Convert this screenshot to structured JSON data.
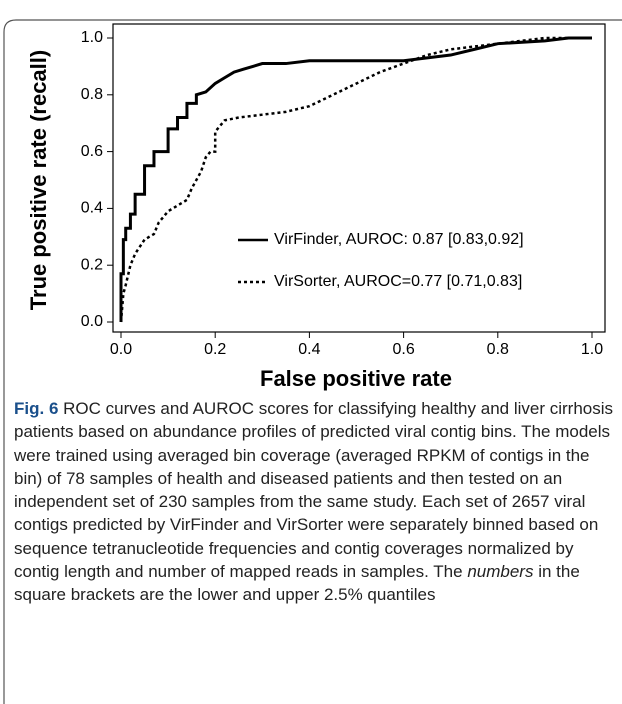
{
  "chart_data": {
    "type": "line",
    "xlabel": "False positive rate",
    "ylabel": "True positive rate (recall)",
    "xlim": [
      0,
      1
    ],
    "xticks": [
      {
        "value": 0,
        "label": "0.0"
      },
      {
        "value": 0.2,
        "label": "0.2"
      },
      {
        "value": 0.4,
        "label": "0.4"
      },
      {
        "value": 0.6,
        "label": "0.6"
      },
      {
        "value": 0.8,
        "label": "0.8"
      },
      {
        "value": 1,
        "label": "1.0"
      }
    ],
    "ylim": [
      0,
      1
    ],
    "yticks": [
      {
        "value": 0,
        "label": "0.0"
      },
      {
        "value": 0.2,
        "label": "0.2"
      },
      {
        "value": 0.4,
        "label": "0.4"
      },
      {
        "value": 0.6,
        "label": "0.6"
      },
      {
        "value": 0.8,
        "label": "0.8"
      },
      {
        "value": 1,
        "label": "1.0"
      }
    ],
    "series": [
      {
        "name": "VirFinder, AUROC: 0.87 [0.83,0.92]",
        "color": "#000000",
        "dash": "solid",
        "x": [
          0,
          0,
          0.005,
          0.005,
          0.01,
          0.01,
          0.02,
          0.02,
          0.03,
          0.03,
          0.05,
          0.05,
          0.07,
          0.07,
          0.1,
          0.1,
          0.12,
          0.12,
          0.14,
          0.14,
          0.16,
          0.16,
          0.18,
          0.2,
          0.22,
          0.24,
          0.26,
          0.28,
          0.3,
          0.35,
          0.4,
          0.5,
          0.6,
          0.65,
          0.7,
          0.75,
          0.8,
          0.9,
          0.95,
          1.0
        ],
        "values": [
          0,
          0.17,
          0.17,
          0.29,
          0.29,
          0.33,
          0.33,
          0.38,
          0.38,
          0.45,
          0.45,
          0.55,
          0.55,
          0.6,
          0.6,
          0.68,
          0.68,
          0.72,
          0.72,
          0.77,
          0.77,
          0.8,
          0.81,
          0.84,
          0.86,
          0.88,
          0.89,
          0.9,
          0.91,
          0.91,
          0.92,
          0.92,
          0.92,
          0.93,
          0.94,
          0.96,
          0.98,
          0.99,
          1.0,
          1.0
        ]
      },
      {
        "name": "VirSorter, AUROC=0.77 [0.71,0.83]",
        "color": "#000000",
        "dash": "dotted",
        "x": [
          0,
          0.005,
          0.01,
          0.02,
          0.03,
          0.05,
          0.07,
          0.08,
          0.1,
          0.12,
          0.14,
          0.15,
          0.17,
          0.18,
          0.19,
          0.2,
          0.2,
          0.22,
          0.25,
          0.3,
          0.35,
          0.4,
          0.45,
          0.5,
          0.55,
          0.6,
          0.65,
          0.7,
          0.75,
          0.8,
          0.85,
          0.9,
          1.0
        ],
        "values": [
          0,
          0.1,
          0.13,
          0.2,
          0.24,
          0.29,
          0.31,
          0.35,
          0.39,
          0.41,
          0.43,
          0.47,
          0.53,
          0.58,
          0.6,
          0.6,
          0.67,
          0.71,
          0.72,
          0.73,
          0.74,
          0.76,
          0.8,
          0.84,
          0.88,
          0.91,
          0.94,
          0.96,
          0.97,
          0.98,
          0.99,
          1.0,
          1.0
        ]
      }
    ],
    "legend": "lower right"
  },
  "caption": {
    "label": "Fig. 6",
    "text_before": "ROC curves and AUROC scores for classifying healthy and liver cirrhosis patients based on abundance profiles of predicted viral contig bins. The models were trained using averaged bin coverage (averaged RPKM of contigs in the bin) of 78 samples of health and diseased patients and then tested on an independent set of 230 samples from the same study. Each set of 2657 viral contigs predicted by VirFinder and VirSorter were separately binned based on sequence tetranucleotide frequencies and contig coverages normalized by contig length and number of mapped reads in samples. The",
    "italic": "numbers",
    "text_after": "in the square brackets are the lower and upper 2.5% quantiles"
  }
}
